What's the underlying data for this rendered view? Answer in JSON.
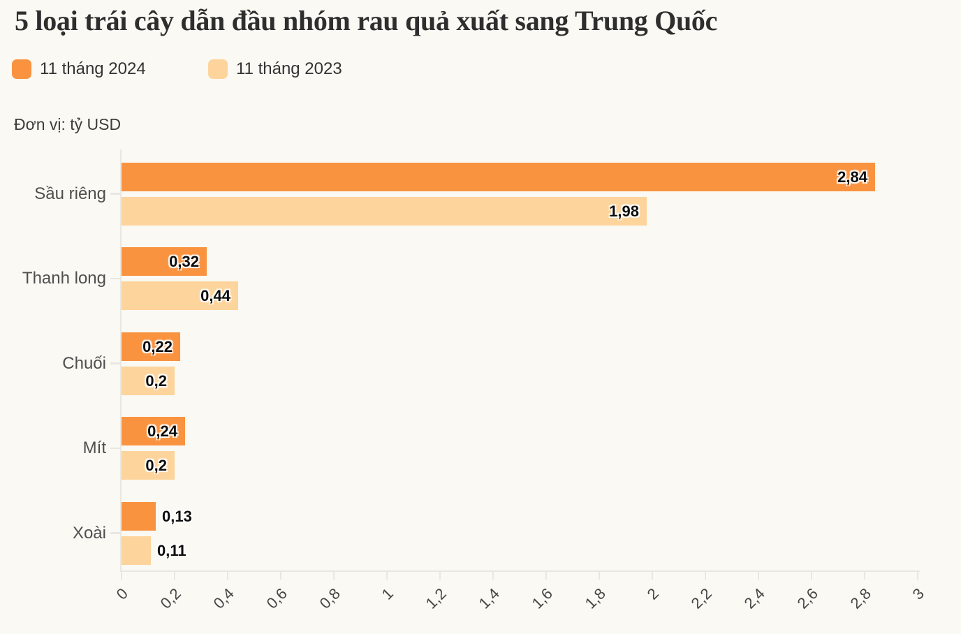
{
  "title": "5 loại trái cây dẫn đầu nhóm rau quả xuất sang Trung Quốc",
  "unit_label": "Đơn vị: tỷ USD",
  "legend": {
    "position": "top-left",
    "items": [
      {
        "label": "11 tháng 2024",
        "color": "#fa9340"
      },
      {
        "label": "11 tháng 2023",
        "color": "#fdd49c"
      }
    ]
  },
  "colors": {
    "background": "#faf9f3",
    "axis": "#e9e7e1",
    "title_text": "#2e2e2e",
    "category_text": "#4f4f4f",
    "tick_text": "#454545",
    "value_text": "#0d0d0d",
    "series_2024": "#fa9340",
    "series_2023": "#fdd49c"
  },
  "chart_data": {
    "type": "bar",
    "orientation": "horizontal",
    "title": "5 loại trái cây dẫn đầu nhóm rau quả xuất sang Trung Quốc",
    "unit": "tỷ USD",
    "categories": [
      "Sầu riêng",
      "Thanh long",
      "Chuối",
      "Mít",
      "Xoài"
    ],
    "series": [
      {
        "name": "11 tháng 2024",
        "color": "#fa9340",
        "values": [
          2.84,
          0.32,
          0.22,
          0.24,
          0.13
        ],
        "value_labels": [
          "2,84",
          "0,32",
          "0,22",
          "0,24",
          "0,13"
        ]
      },
      {
        "name": "11 tháng 2023",
        "color": "#fdd49c",
        "values": [
          1.98,
          0.44,
          0.2,
          0.2,
          0.11
        ],
        "value_labels": [
          "1,98",
          "0,44",
          "0,2",
          "0,2",
          "0,11"
        ]
      }
    ],
    "xlim": [
      0,
      3
    ],
    "x_tick_values": [
      0,
      0.2,
      0.4,
      0.6,
      0.8,
      1,
      1.2,
      1.4,
      1.6,
      1.8,
      2,
      2.2,
      2.4,
      2.6,
      2.8,
      3
    ],
    "x_tick_labels": [
      "0",
      "0,2",
      "0,4",
      "0,6",
      "0,8",
      "1",
      "1,2",
      "1,4",
      "1,6",
      "1,8",
      "2",
      "2,2",
      "2,4",
      "2,6",
      "2,8",
      "3"
    ],
    "x_tick_rotation": -45,
    "grid": false,
    "value_labels_shown": true,
    "legend_position": "top-left"
  }
}
